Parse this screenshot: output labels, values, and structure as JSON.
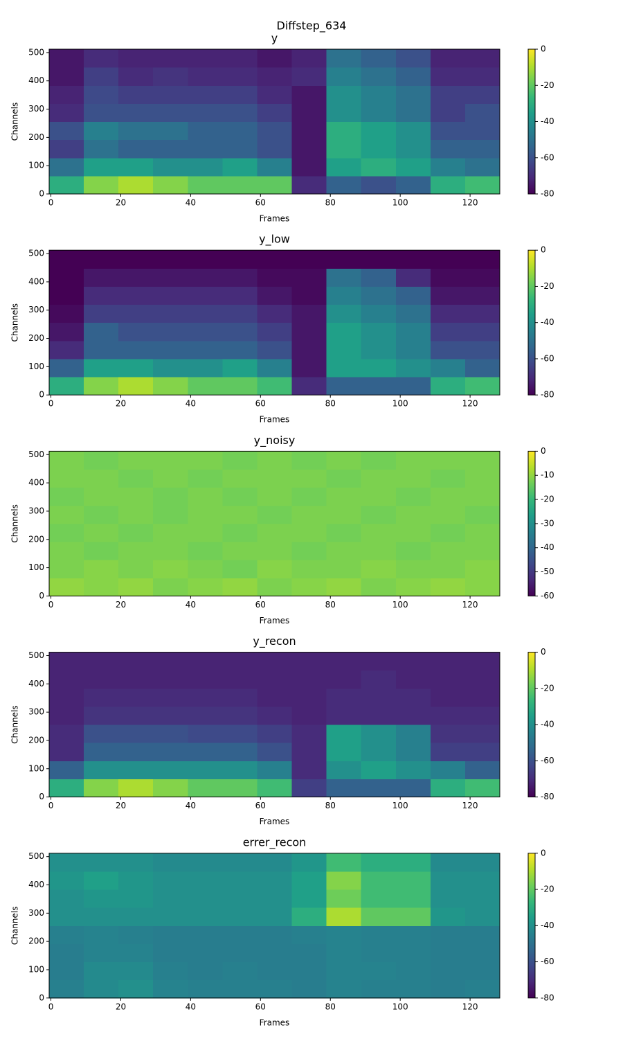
{
  "title": "Diffstep_634",
  "chart_data": [
    {
      "type": "heatmap",
      "title": "y",
      "xlabel": "Frames",
      "ylabel": "Channels",
      "colormap": "viridis",
      "xlim": [
        -0.5,
        128.5
      ],
      "ylim": [
        0,
        512
      ],
      "xticks": [
        0,
        20,
        40,
        60,
        80,
        100,
        120
      ],
      "yticks": [
        0,
        100,
        200,
        300,
        400,
        500
      ],
      "zlim": [
        -80,
        0
      ],
      "zticks": [
        0,
        -20,
        -40,
        -60,
        -80
      ],
      "z": [
        [
          -30,
          -15,
          -10,
          -15,
          -20,
          -20,
          -20,
          -70,
          -55,
          -60,
          -55,
          -30,
          -25
        ],
        [
          -50,
          -35,
          -35,
          -40,
          -40,
          -35,
          -45,
          -75,
          -35,
          -30,
          -35,
          -45,
          -50
        ],
        [
          -65,
          -50,
          -55,
          -55,
          -55,
          -55,
          -60,
          -75,
          -30,
          -35,
          -40,
          -55,
          -55
        ],
        [
          -60,
          -45,
          -50,
          -50,
          -55,
          -55,
          -60,
          -75,
          -30,
          -35,
          -40,
          -60,
          -60
        ],
        [
          -70,
          -60,
          -60,
          -60,
          -60,
          -60,
          -65,
          -75,
          -40,
          -45,
          -50,
          -65,
          -60
        ],
        [
          -72,
          -62,
          -65,
          -65,
          -65,
          -65,
          -70,
          -75,
          -40,
          -45,
          -50,
          -65,
          -65
        ],
        [
          -75,
          -65,
          -70,
          -68,
          -70,
          -70,
          -72,
          -70,
          -45,
          -50,
          -55,
          -70,
          -70
        ],
        [
          -75,
          -70,
          -72,
          -72,
          -72,
          -72,
          -75,
          -72,
          -50,
          -55,
          -60,
          -72,
          -72
        ]
      ]
    },
    {
      "type": "heatmap",
      "title": "y_low",
      "xlabel": "Frames",
      "ylabel": "Channels",
      "colormap": "viridis",
      "xlim": [
        -0.5,
        128.5
      ],
      "ylim": [
        0,
        512
      ],
      "xticks": [
        0,
        20,
        40,
        60,
        80,
        100,
        120
      ],
      "yticks": [
        0,
        100,
        200,
        300,
        400,
        500
      ],
      "zlim": [
        -80,
        0
      ],
      "zticks": [
        0,
        -20,
        -40,
        -60,
        -80
      ],
      "z": [
        [
          -30,
          -15,
          -10,
          -15,
          -20,
          -20,
          -25,
          -70,
          -55,
          -55,
          -55,
          -30,
          -25
        ],
        [
          -55,
          -35,
          -35,
          -40,
          -40,
          -35,
          -45,
          -75,
          -35,
          -35,
          -40,
          -45,
          -55
        ],
        [
          -70,
          -55,
          -55,
          -55,
          -55,
          -55,
          -60,
          -75,
          -35,
          -40,
          -45,
          -60,
          -60
        ],
        [
          -75,
          -55,
          -60,
          -60,
          -60,
          -60,
          -65,
          -75,
          -35,
          -40,
          -45,
          -65,
          -65
        ],
        [
          -78,
          -65,
          -65,
          -65,
          -65,
          -65,
          -70,
          -75,
          -40,
          -45,
          -50,
          -70,
          -70
        ],
        [
          -80,
          -70,
          -70,
          -70,
          -70,
          -70,
          -75,
          -78,
          -45,
          -50,
          -55,
          -75,
          -75
        ],
        [
          -80,
          -75,
          -75,
          -75,
          -75,
          -75,
          -78,
          -78,
          -50,
          -55,
          -70,
          -78,
          -78
        ],
        [
          -80,
          -80,
          -80,
          -80,
          -80,
          -80,
          -80,
          -80,
          -80,
          -80,
          -80,
          -80,
          -80
        ]
      ]
    },
    {
      "type": "heatmap",
      "title": "y_noisy",
      "xlabel": "Frames",
      "ylabel": "Channels",
      "colormap": "viridis",
      "xlim": [
        -0.5,
        128.5
      ],
      "ylim": [
        0,
        512
      ],
      "xticks": [
        0,
        20,
        40,
        60,
        80,
        100,
        120
      ],
      "yticks": [
        0,
        100,
        200,
        300,
        400,
        500
      ],
      "zlim": [
        -60,
        0
      ],
      "zticks": [
        0,
        -10,
        -20,
        -30,
        -40,
        -50,
        -60
      ],
      "z": [
        [
          -10,
          -11,
          -10,
          -12,
          -11,
          -10,
          -12,
          -11,
          -10,
          -12,
          -11,
          -10,
          -11
        ],
        [
          -12,
          -11,
          -12,
          -11,
          -12,
          -13,
          -11,
          -12,
          -12,
          -11,
          -12,
          -12,
          -11
        ],
        [
          -12,
          -13,
          -12,
          -12,
          -13,
          -12,
          -12,
          -13,
          -12,
          -12,
          -13,
          -12,
          -12
        ],
        [
          -13,
          -12,
          -13,
          -12,
          -12,
          -13,
          -12,
          -12,
          -13,
          -12,
          -12,
          -13,
          -12
        ],
        [
          -12,
          -13,
          -12,
          -13,
          -12,
          -12,
          -13,
          -12,
          -12,
          -13,
          -12,
          -12,
          -13
        ],
        [
          -13,
          -12,
          -12,
          -13,
          -12,
          -13,
          -12,
          -13,
          -12,
          -12,
          -13,
          -12,
          -12
        ],
        [
          -12,
          -12,
          -13,
          -12,
          -13,
          -12,
          -12,
          -12,
          -13,
          -12,
          -12,
          -13,
          -12
        ],
        [
          -12,
          -13,
          -12,
          -12,
          -12,
          -13,
          -12,
          -13,
          -12,
          -13,
          -12,
          -12,
          -12
        ]
      ]
    },
    {
      "type": "heatmap",
      "title": "y_recon",
      "xlabel": "Frames",
      "ylabel": "Channels",
      "colormap": "viridis",
      "xlim": [
        -0.5,
        128.5
      ],
      "ylim": [
        0,
        512
      ],
      "xticks": [
        0,
        20,
        40,
        60,
        80,
        100,
        120
      ],
      "yticks": [
        0,
        100,
        200,
        300,
        400,
        500
      ],
      "zlim": [
        -80,
        0
      ],
      "zticks": [
        0,
        -20,
        -40,
        -60,
        -80
      ],
      "z": [
        [
          -30,
          -15,
          -10,
          -15,
          -20,
          -20,
          -25,
          -65,
          -55,
          -55,
          -55,
          -30,
          -25
        ],
        [
          -55,
          -40,
          -40,
          -40,
          -40,
          -40,
          -45,
          -70,
          -40,
          -35,
          -40,
          -45,
          -55
        ],
        [
          -70,
          -55,
          -55,
          -55,
          -55,
          -55,
          -60,
          -70,
          -35,
          -40,
          -45,
          -65,
          -65
        ],
        [
          -70,
          -60,
          -60,
          -60,
          -62,
          -62,
          -65,
          -70,
          -35,
          -40,
          -45,
          -68,
          -68
        ],
        [
          -72,
          -68,
          -68,
          -68,
          -68,
          -68,
          -70,
          -72,
          -70,
          -70,
          -70,
          -70,
          -70
        ],
        [
          -72,
          -70,
          -70,
          -70,
          -70,
          -70,
          -72,
          -72,
          -70,
          -70,
          -70,
          -72,
          -72
        ],
        [
          -72,
          -72,
          -72,
          -72,
          -72,
          -72,
          -72,
          -72,
          -72,
          -70,
          -72,
          -72,
          -72
        ],
        [
          -72,
          -72,
          -72,
          -72,
          -72,
          -72,
          -72,
          -72,
          -72,
          -72,
          -72,
          -72,
          -72
        ]
      ]
    },
    {
      "type": "heatmap",
      "title": "errer_recon",
      "xlabel": "Frames",
      "ylabel": "Channels",
      "colormap": "viridis",
      "xlim": [
        -0.5,
        128.5
      ],
      "ylim": [
        0,
        512
      ],
      "xticks": [
        0,
        20,
        40,
        60,
        80,
        100,
        120
      ],
      "yticks": [
        0,
        100,
        200,
        300,
        400,
        500
      ],
      "zlim": [
        -80,
        0
      ],
      "zticks": [
        0,
        -20,
        -40,
        -60,
        -80
      ],
      "z": [
        [
          -45,
          -42,
          -40,
          -44,
          -45,
          -45,
          -45,
          -46,
          -44,
          -45,
          -45,
          -46,
          -45
        ],
        [
          -46,
          -42,
          -42,
          -45,
          -46,
          -45,
          -46,
          -46,
          -44,
          -44,
          -45,
          -46,
          -46
        ],
        [
          -46,
          -44,
          -44,
          -46,
          -46,
          -46,
          -46,
          -46,
          -44,
          -45,
          -45,
          -46,
          -46
        ],
        [
          -45,
          -44,
          -45,
          -46,
          -46,
          -46,
          -46,
          -45,
          -44,
          -45,
          -45,
          -46,
          -46
        ],
        [
          -40,
          -40,
          -40,
          -40,
          -40,
          -40,
          -40,
          -30,
          -10,
          -20,
          -20,
          -38,
          -40
        ],
        [
          -40,
          -38,
          -38,
          -40,
          -40,
          -40,
          -40,
          -35,
          -18,
          -25,
          -25,
          -40,
          -40
        ],
        [
          -38,
          -35,
          -38,
          -40,
          -40,
          -40,
          -40,
          -35,
          -15,
          -25,
          -25,
          -40,
          -40
        ],
        [
          -40,
          -40,
          -40,
          -42,
          -42,
          -42,
          -42,
          -38,
          -25,
          -30,
          -30,
          -42,
          -42
        ]
      ]
    }
  ]
}
